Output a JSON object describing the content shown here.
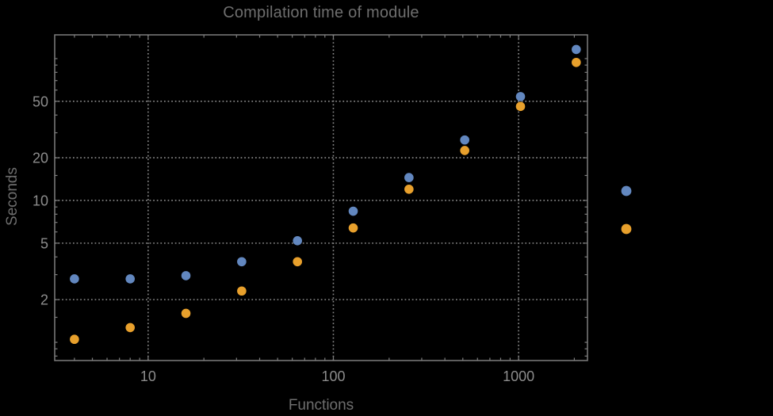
{
  "page": {
    "background_color": "#000000"
  },
  "colors": {
    "background": "#000000",
    "frame": "#7d7d7d",
    "grid": "#8c8c8c",
    "tick_label_text": "#8c8c8c",
    "title_text": "#6e6e6e",
    "series_blue": "#6287bf",
    "series_orange": "#e8a02c"
  },
  "chart_data": {
    "type": "scatter",
    "title": "Compilation time of module",
    "xlabel": "Functions",
    "ylabel": "Seconds",
    "x_scale": "log",
    "y_scale": "log",
    "xlim": [
      3.13,
      2355
    ],
    "ylim": [
      0.744,
      147
    ],
    "grid": "dotted lines at labeled major ticks, frame on all four sides",
    "legend_position": "right-outside-middle",
    "x": [
      4,
      8,
      16,
      32,
      64,
      128,
      256,
      512,
      1024,
      2048
    ],
    "series": [
      {
        "name": "blue",
        "color": "#6287bf",
        "marker": "filled-circle",
        "values": [
          2.8,
          2.8,
          2.95,
          3.7,
          5.2,
          8.4,
          14.5,
          26.7,
          54,
          116
        ]
      },
      {
        "name": "orange",
        "color": "#e8a02c",
        "marker": "filled-circle",
        "values": [
          1.05,
          1.27,
          1.6,
          2.3,
          3.7,
          6.4,
          12,
          22.5,
          46,
          94
        ]
      }
    ],
    "x_axis": {
      "tick_values": [
        10,
        100,
        1000
      ],
      "tick_labels": [
        "10",
        "100",
        "1000"
      ],
      "minor_tick_values": [
        4,
        5,
        6,
        7,
        8,
        9,
        20,
        30,
        40,
        50,
        60,
        70,
        80,
        90,
        200,
        300,
        400,
        500,
        600,
        700,
        800,
        900,
        2000
      ]
    },
    "y_axis": {
      "tick_values": [
        2,
        5,
        10,
        20,
        50
      ],
      "tick_labels": [
        "2",
        "5",
        "10",
        "20",
        "50"
      ],
      "minor_tick_values": [
        0.8,
        0.9,
        1,
        1.5,
        3,
        4,
        6,
        7,
        8,
        9,
        15,
        30,
        40,
        60,
        70,
        80,
        90,
        100
      ]
    },
    "legend": {
      "entries": [
        {
          "series": "blue",
          "label": ""
        },
        {
          "series": "orange",
          "label": ""
        }
      ]
    }
  }
}
